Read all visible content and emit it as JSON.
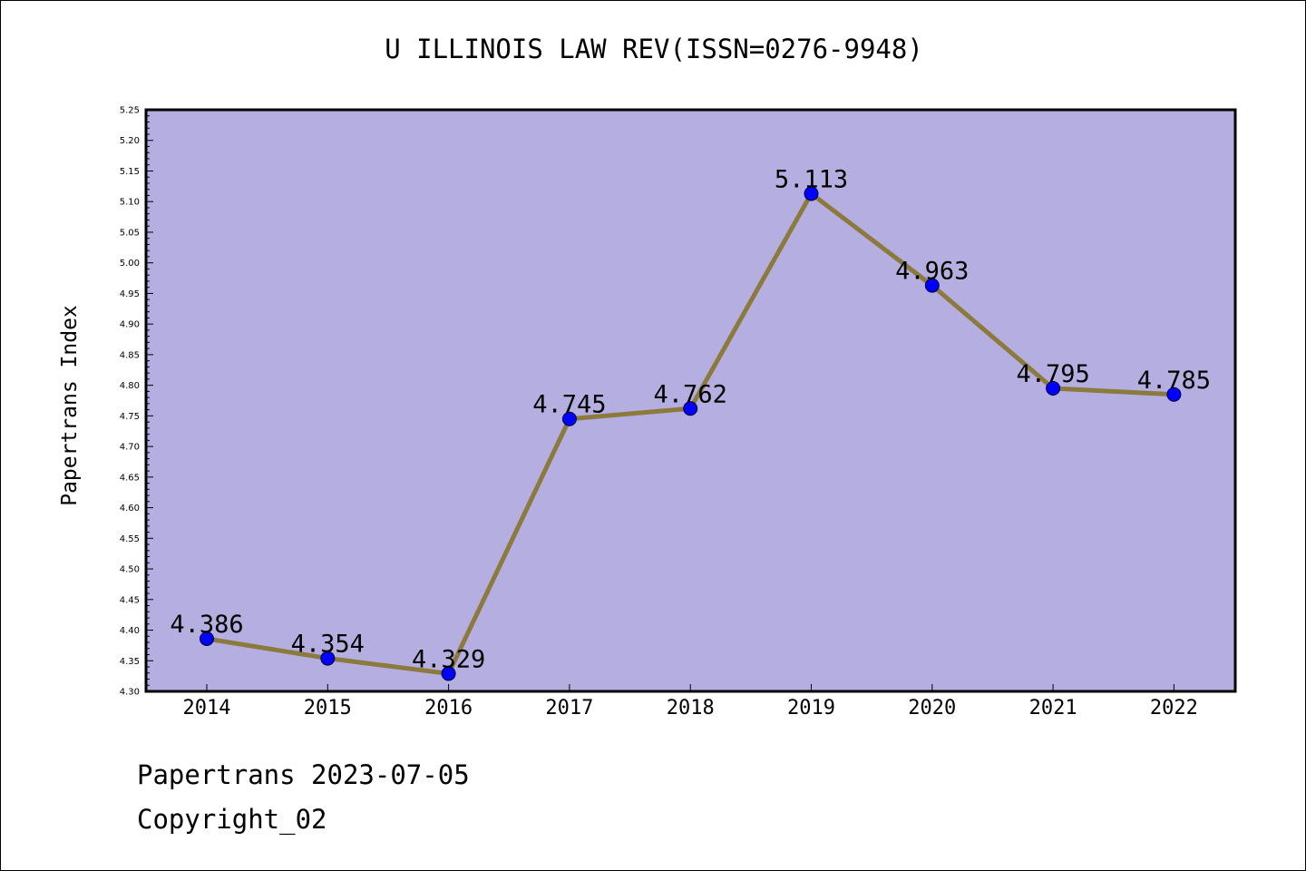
{
  "chart_data": {
    "type": "line",
    "title": "U ILLINOIS LAW REV(ISSN=0276-9948)",
    "xlabel": "",
    "ylabel": "Papertrans Index",
    "categories": [
      "2014",
      "2015",
      "2016",
      "2017",
      "2018",
      "2019",
      "2020",
      "2021",
      "2022"
    ],
    "values": [
      4.386,
      4.354,
      4.329,
      4.745,
      4.762,
      5.113,
      4.963,
      4.795,
      4.785
    ],
    "data_labels": [
      "4.386",
      "4.354",
      "4.329",
      "4.745",
      "4.762",
      "5.113",
      "4.963",
      "4.795",
      "4.785"
    ],
    "ylim": [
      4.3,
      5.25
    ],
    "yticks": [
      "4.30",
      "4.35",
      "4.40",
      "4.45",
      "4.50",
      "4.55",
      "4.60",
      "4.65",
      "4.70",
      "4.75",
      "4.80",
      "4.85",
      "4.90",
      "4.95",
      "5.00",
      "5.05",
      "5.10",
      "5.15",
      "5.20",
      "5.25"
    ],
    "grid": false,
    "legend": "none",
    "colors": {
      "plot_background": "#b4aee1",
      "line": "#8c7a3c",
      "marker": "#0000ff",
      "frame": "#000000"
    }
  },
  "footer": {
    "date_text": "Papertrans 2023-07-05",
    "copyright_text": "Copyright_02"
  }
}
